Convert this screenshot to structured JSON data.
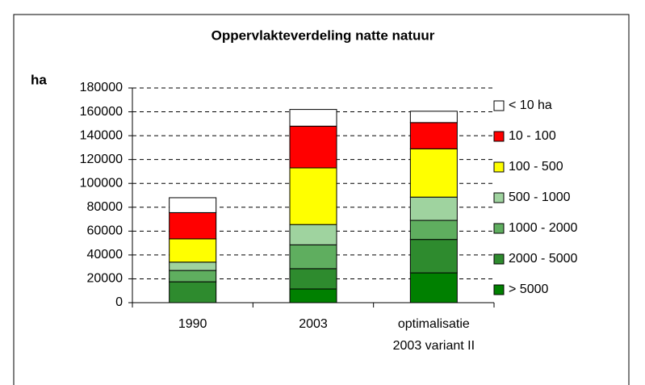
{
  "chart_data": {
    "type": "stacked_bar",
    "title": "Oppervlakteverdeling natte natuur",
    "y_label": "ha",
    "categories": [
      "1990",
      "2003",
      [
        "optimalisatie",
        "2003 variant II"
      ]
    ],
    "series": [
      {
        "name": "> 5000",
        "color": "#008000",
        "values": [
          0,
          11500,
          25000
        ]
      },
      {
        "name": "2000 - 5000",
        "color": "#2e8b2e",
        "values": [
          17500,
          17000,
          28000
        ]
      },
      {
        "name": "1000 - 2000",
        "color": "#5fae5f",
        "values": [
          9500,
          20000,
          16000
        ]
      },
      {
        "name": "500 - 1000",
        "color": "#9fd39f",
        "values": [
          7000,
          17000,
          19500
        ]
      },
      {
        "name": "100 - 500",
        "color": "#ffff00",
        "values": [
          19500,
          47500,
          40500
        ]
      },
      {
        "name": "10 - 100",
        "color": "#ff0000",
        "values": [
          22000,
          35000,
          22000
        ]
      },
      {
        "name": "< 10 ha",
        "color": "#ffffff",
        "values": [
          12500,
          14000,
          9500
        ]
      }
    ],
    "ylim": [
      0,
      180000
    ],
    "yticks": [
      0,
      20000,
      40000,
      60000,
      80000,
      100000,
      120000,
      140000,
      160000,
      180000
    ],
    "grid": true,
    "legend": "right"
  }
}
